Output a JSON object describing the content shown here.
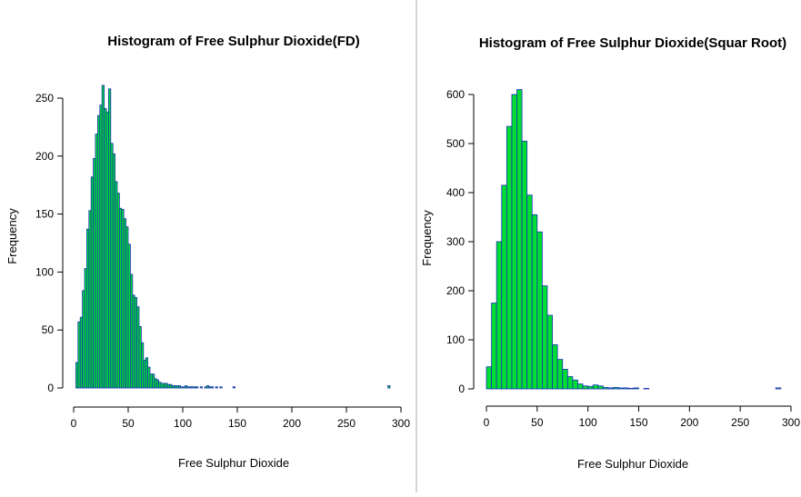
{
  "colors": {
    "bar_fill": "#00dd33",
    "bar_stroke": "#1a2fb8",
    "text": "#000000"
  },
  "chart_data": [
    {
      "type": "bar",
      "title": "Histogram of Free Sulphur Dioxide(FD)",
      "xlabel": "Free Sulphur Dioxide",
      "ylabel": "Frequency",
      "xlim": [
        0,
        300
      ],
      "ylim": [
        0,
        250
      ],
      "xticks": [
        "0",
        "50",
        "100",
        "150",
        "200",
        "250",
        "300"
      ],
      "yticks": [
        "0",
        "50",
        "100",
        "150",
        "200",
        "250"
      ],
      "bin_width": 2,
      "x": [
        2,
        4,
        6,
        8,
        10,
        12,
        14,
        16,
        18,
        20,
        22,
        24,
        26,
        28,
        30,
        32,
        34,
        36,
        38,
        40,
        42,
        44,
        46,
        48,
        50,
        52,
        54,
        56,
        58,
        60,
        62,
        64,
        66,
        68,
        70,
        72,
        74,
        76,
        78,
        80,
        82,
        84,
        86,
        88,
        90,
        92,
        94,
        96,
        98,
        100,
        102,
        104,
        106,
        108,
        110,
        112,
        114,
        116,
        118,
        120,
        122,
        124,
        126,
        128,
        130,
        132,
        134,
        136,
        138,
        140,
        142,
        144,
        146,
        148,
        150,
        152,
        154,
        156,
        158,
        160,
        162,
        164,
        166,
        168,
        170,
        172,
        174,
        176,
        178,
        180,
        182,
        184,
        186,
        188,
        190,
        192,
        194,
        196,
        198,
        200,
        202,
        204,
        206,
        208,
        210,
        212,
        214,
        216,
        218,
        220,
        222,
        224,
        226,
        228,
        230,
        232,
        234,
        236,
        238,
        240,
        242,
        244,
        246,
        248,
        250,
        252,
        254,
        256,
        258,
        260,
        262,
        264,
        266,
        268,
        270,
        272,
        274,
        276,
        278,
        280,
        282,
        284,
        286,
        288
      ],
      "values": [
        22,
        57,
        61,
        84,
        103,
        137,
        153,
        182,
        198,
        219,
        235,
        244,
        261,
        241,
        238,
        258,
        211,
        202,
        178,
        168,
        155,
        154,
        146,
        139,
        124,
        98,
        80,
        78,
        70,
        53,
        39,
        24,
        26,
        18,
        12,
        12,
        8,
        7,
        5,
        4,
        4,
        4,
        3,
        3,
        2,
        2,
        2,
        2,
        1,
        1,
        2,
        1,
        1,
        1,
        1,
        1,
        0,
        1,
        0,
        1,
        2,
        1,
        1,
        0,
        1,
        0,
        1,
        0,
        0,
        0,
        0,
        0,
        1,
        0,
        0,
        0,
        0,
        0,
        0,
        0,
        0,
        0,
        0,
        0,
        0,
        0,
        0,
        0,
        0,
        0,
        0,
        0,
        0,
        0,
        0,
        0,
        0,
        0,
        0,
        0,
        0,
        0,
        0,
        0,
        0,
        0,
        0,
        0,
        0,
        0,
        0,
        0,
        0,
        0,
        0,
        0,
        0,
        0,
        0,
        0,
        0,
        0,
        0,
        0,
        0,
        0,
        0,
        0,
        0,
        0,
        0,
        0,
        0,
        0,
        0,
        0,
        0,
        0,
        0,
        0,
        0,
        0,
        0,
        2
      ]
    },
    {
      "type": "bar",
      "title": "Histogram of Free Sulphur Dioxide(Squar Root)",
      "xlabel": "Free Sulphur Dioxide",
      "ylabel": "Frequency",
      "xlim": [
        0,
        300
      ],
      "ylim": [
        0,
        600
      ],
      "xticks": [
        "0",
        "50",
        "100",
        "150",
        "200",
        "250",
        "300"
      ],
      "yticks": [
        "0",
        "100",
        "200",
        "300",
        "400",
        "500",
        "600"
      ],
      "bin_width": 5,
      "x": [
        0,
        5,
        10,
        15,
        20,
        25,
        30,
        35,
        40,
        45,
        50,
        55,
        60,
        65,
        70,
        75,
        80,
        85,
        90,
        95,
        100,
        105,
        110,
        115,
        120,
        125,
        130,
        135,
        140,
        145,
        150,
        155,
        160,
        165,
        170,
        175,
        180,
        185,
        190,
        195,
        200,
        205,
        210,
        215,
        220,
        225,
        230,
        235,
        240,
        245,
        250,
        255,
        260,
        265,
        270,
        275,
        280,
        285
      ],
      "values": [
        45,
        175,
        300,
        415,
        535,
        600,
        610,
        505,
        395,
        355,
        320,
        210,
        150,
        90,
        60,
        40,
        25,
        18,
        10,
        6,
        5,
        8,
        6,
        3,
        2,
        3,
        2,
        2,
        1,
        2,
        0,
        1,
        0,
        0,
        0,
        0,
        0,
        0,
        0,
        0,
        0,
        0,
        0,
        0,
        0,
        0,
        0,
        0,
        0,
        0,
        0,
        0,
        0,
        0,
        0,
        0,
        0,
        2
      ]
    }
  ]
}
